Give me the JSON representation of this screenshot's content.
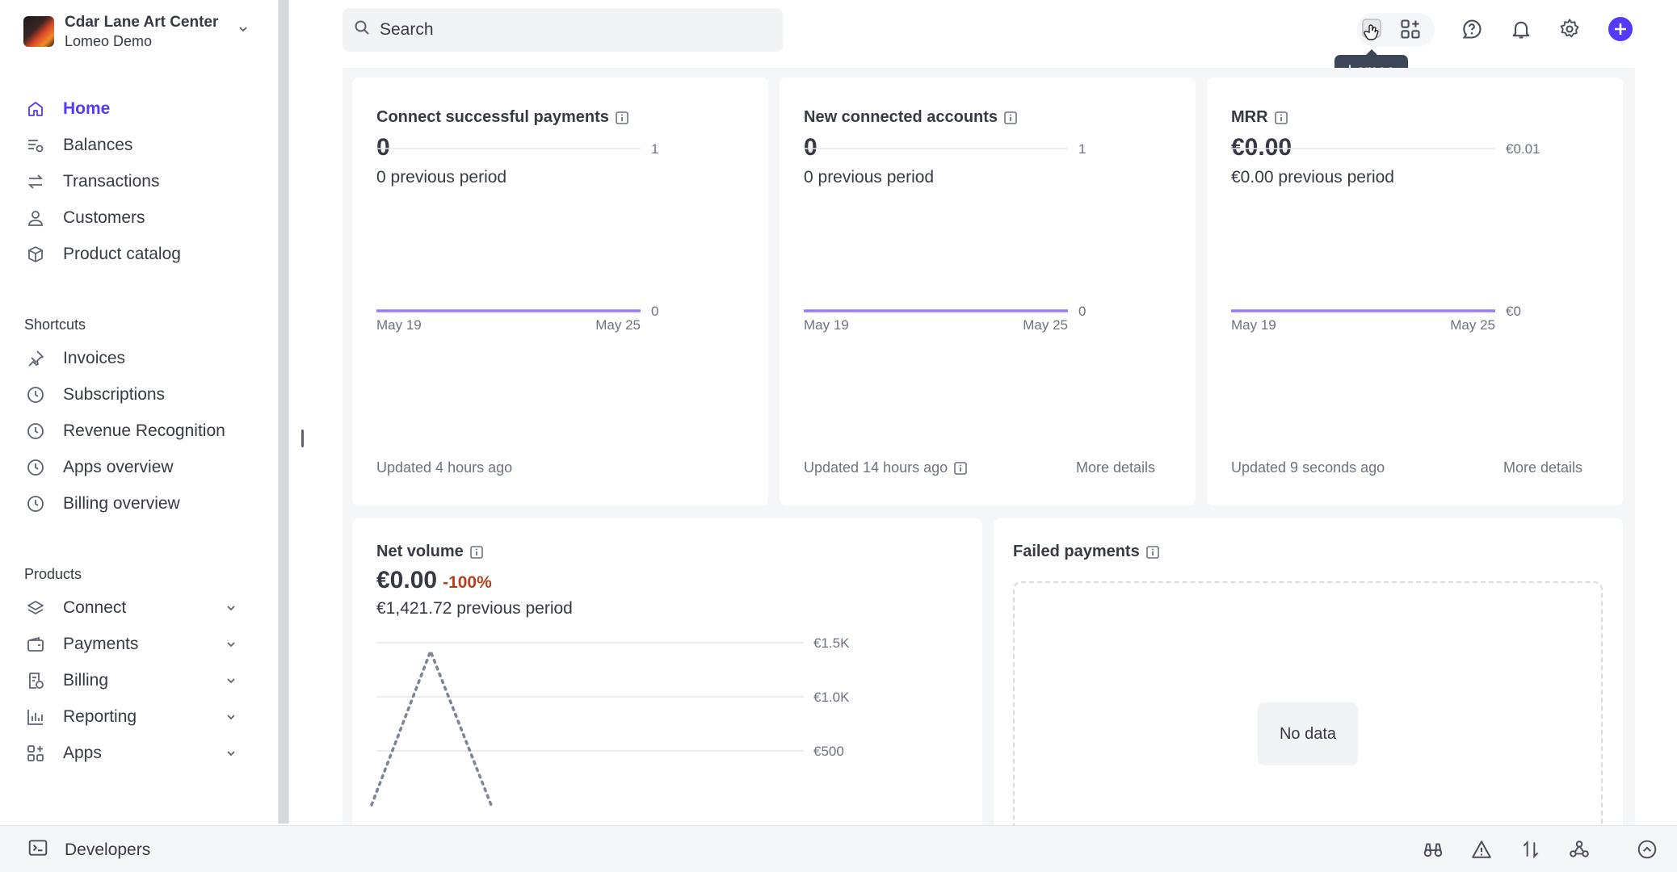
{
  "account": {
    "name": "Cdar Lane Art Center",
    "subtitle": "Lomeo Demo"
  },
  "nav": {
    "main": [
      {
        "label": "Home",
        "icon": "home-icon",
        "active": true
      },
      {
        "label": "Balances",
        "icon": "balances-icon"
      },
      {
        "label": "Transactions",
        "icon": "transactions-icon"
      },
      {
        "label": "Customers",
        "icon": "customers-icon"
      },
      {
        "label": "Product catalog",
        "icon": "box-icon"
      }
    ],
    "shortcuts_label": "Shortcuts",
    "shortcuts": [
      {
        "label": "Invoices",
        "icon": "pin-icon"
      },
      {
        "label": "Subscriptions",
        "icon": "clock-icon"
      },
      {
        "label": "Revenue Recognition",
        "icon": "clock-icon"
      },
      {
        "label": "Apps overview",
        "icon": "clock-icon"
      },
      {
        "label": "Billing overview",
        "icon": "clock-icon"
      }
    ],
    "products_label": "Products",
    "products": [
      {
        "label": "Connect",
        "icon": "layers-icon"
      },
      {
        "label": "Payments",
        "icon": "wallet-icon"
      },
      {
        "label": "Billing",
        "icon": "billing-icon"
      },
      {
        "label": "Reporting",
        "icon": "bar-chart-icon"
      },
      {
        "label": "Apps",
        "icon": "apps-icon"
      }
    ]
  },
  "search": {
    "placeholder": "Search"
  },
  "tooltip": "Lomeo",
  "colors": {
    "accent": "#533afd",
    "negative": "#b3401e",
    "line": "#9b7bf0"
  },
  "cards": {
    "connect_payments": {
      "title": "Connect successful payments",
      "value": "0",
      "previous": "0 previous period",
      "updated": "Updated 4 hours ago"
    },
    "new_accounts": {
      "title": "New connected accounts",
      "value": "0",
      "previous": "0 previous period",
      "updated": "Updated 14 hours ago",
      "more": "More details"
    },
    "mrr": {
      "title": "MRR",
      "value": "€0.00",
      "previous": "€0.00 previous period",
      "updated": "Updated 9 seconds ago",
      "more": "More details"
    },
    "net_volume": {
      "title": "Net volume",
      "value": "€0.00",
      "change": "-100%",
      "previous": "€1,421.72 previous period"
    },
    "failed_payments": {
      "title": "Failed payments",
      "empty": "No data"
    }
  },
  "chart_data": [
    {
      "type": "line",
      "x": [
        "May 19",
        "May 25"
      ],
      "series": [
        {
          "values": [
            0,
            0
          ]
        }
      ],
      "ylim": [
        0,
        1
      ],
      "yticks": [
        "1",
        "0"
      ],
      "xlabels": [
        "May 19",
        "May 25"
      ]
    },
    {
      "type": "line",
      "x": [
        "May 19",
        "May 25"
      ],
      "series": [
        {
          "values": [
            0,
            0
          ]
        }
      ],
      "ylim": [
        0,
        1
      ],
      "yticks": [
        "1",
        "0"
      ],
      "xlabels": [
        "May 19",
        "May 25"
      ]
    },
    {
      "type": "line",
      "x": [
        "May 19",
        "May 25"
      ],
      "series": [
        {
          "values": [
            0,
            0
          ]
        }
      ],
      "ylim": [
        0,
        0.01
      ],
      "yticks": [
        "€0.01",
        "€0"
      ],
      "xlabels": [
        "May 19",
        "May 25"
      ]
    },
    {
      "type": "line",
      "yticks": [
        "€1.5K",
        "€1.0K",
        "€500"
      ],
      "ylim": [
        0,
        1500
      ],
      "series": [
        {
          "style": "dotted",
          "values": [
            0,
            1421.72,
            0
          ]
        }
      ]
    }
  ],
  "bottom": {
    "developers": "Developers"
  }
}
